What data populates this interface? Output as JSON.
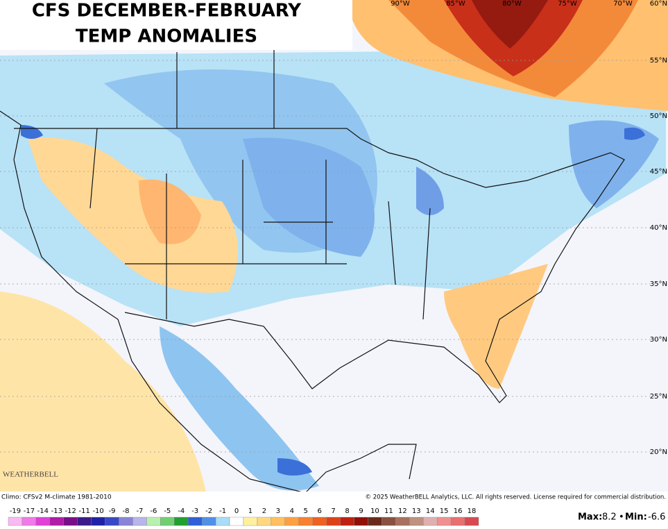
{
  "title_lines": [
    "CFS DECEMBER-FEBRUARY",
    "TEMP ANOMALIES"
  ],
  "latitude_labels": [
    "60°N",
    "55°N",
    "50°N",
    "45°N",
    "40°N",
    "35°N",
    "30°N",
    "25°N",
    "20°N"
  ],
  "longitude_labels": [
    "90°W",
    "85°W",
    "80°W",
    "75°W",
    "70°W"
  ],
  "logo": "WEATHERBELL",
  "climo_note": "Climo: CFSv2 M-climate 1981-2010",
  "copyright": "© 2025 WeatherBELL Analytics, LLC. All rights reserved. License required for commercial distribution.",
  "legend": {
    "values": [
      -19,
      -17,
      -14,
      -13,
      -12,
      -11,
      -10,
      -9,
      -8,
      -7,
      -6,
      -5,
      -4,
      -3,
      -2,
      -1,
      0,
      1,
      2,
      3,
      4,
      5,
      6,
      7,
      8,
      9,
      10,
      11,
      12,
      13,
      14,
      15,
      16,
      18
    ],
    "colors": [
      "#f9b9f2",
      "#f07ae8",
      "#e040d8",
      "#b01ca8",
      "#7a0e88",
      "#3a1a8c",
      "#2020a8",
      "#3848c8",
      "#8a84d8",
      "#b8b4ec",
      "#b8f0b0",
      "#70d070",
      "#20a030",
      "#3060d8",
      "#5090e8",
      "#a8dcf8",
      "#ffffff",
      "#fff0a0",
      "#ffd880",
      "#ffc060",
      "#ffa040",
      "#f88030",
      "#f06020",
      "#e04018",
      "#c02010",
      "#901008",
      "#6a2a1a",
      "#8a5040",
      "#a87060",
      "#c09080",
      "#e0b0b0",
      "#f09090",
      "#e87070",
      "#d84a50"
    ]
  },
  "stats": {
    "max_label": "Max:",
    "max": 8.2,
    "separator": "•",
    "min_label": "Min:",
    "min": -6.6
  }
}
